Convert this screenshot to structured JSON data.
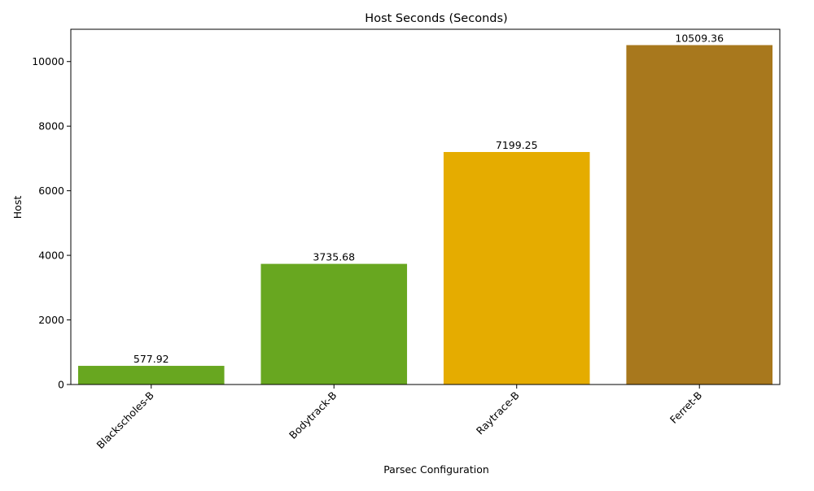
{
  "chart_data": {
    "type": "bar",
    "title": "Host Seconds (Seconds)",
    "xlabel": "Parsec Configuration",
    "ylabel": "Host",
    "categories": [
      "Blackscholes-B",
      "Bodytrack-B",
      "Raytrace-B",
      "Ferret-B"
    ],
    "values": [
      577.92,
      3735.68,
      7199.25,
      10509.36
    ],
    "value_labels": [
      "577.92",
      "3735.68",
      "7199.25",
      "10509.36"
    ],
    "bar_colors": [
      "#68a720",
      "#68a720",
      "#e5ac00",
      "#a8781d"
    ],
    "ylim": [
      0,
      11000
    ],
    "yticks": [
      0,
      2000,
      4000,
      6000,
      8000,
      10000
    ],
    "grid": false,
    "legend": "none"
  }
}
